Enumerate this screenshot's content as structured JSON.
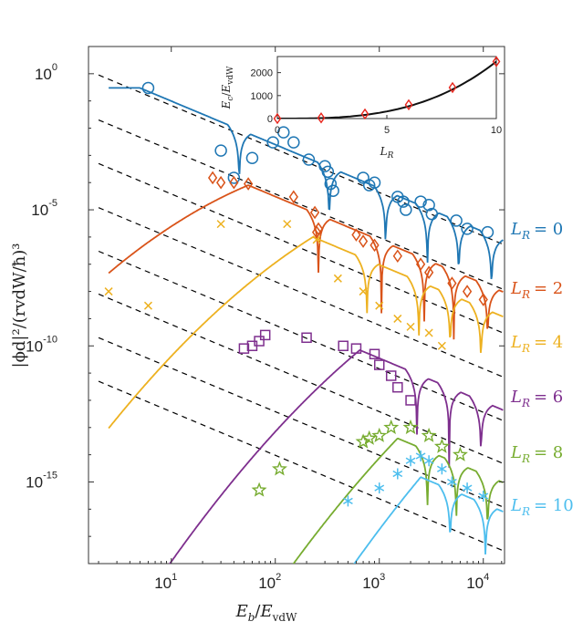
{
  "chart_data": {
    "type": "scatter",
    "xscale": "log",
    "yscale": "log",
    "xlim": [
      1.6,
      16000
    ],
    "ylim": [
      1e-18,
      10.0
    ],
    "xticks": [
      {
        "base": "10",
        "exp": "1",
        "value": 10
      },
      {
        "base": "10",
        "exp": "2",
        "value": 100
      },
      {
        "base": "10",
        "exp": "3",
        "value": 1000
      },
      {
        "base": "10",
        "exp": "4",
        "value": 10000
      }
    ],
    "yticks": [
      {
        "base": "10",
        "exp": "0",
        "value": 1
      },
      {
        "base": "10",
        "exp": "-5",
        "value": 1e-05
      },
      {
        "base": "10",
        "exp": "-10",
        "value": 1e-10
      },
      {
        "base": "10",
        "exp": "-15",
        "value": 1e-15
      }
    ],
    "xlabel": {
      "main": "E",
      "sub": "b",
      "sep": "/",
      "den": "E",
      "den_sub": "vdW"
    },
    "ylabel": {
      "text": "|ϕd|²/(rvdW/ħ)³"
    },
    "series": [
      {
        "name": "L_R = 0",
        "label_main": "L",
        "label_sub": "R",
        "label_eq": "= 0",
        "color": "#1f77b4",
        "marker": "circle",
        "points": [
          [
            6,
            0.3
          ],
          [
            30,
            0.0015
          ],
          [
            40,
            0.00015
          ],
          [
            60,
            0.0008
          ],
          [
            95,
            0.003
          ],
          [
            120,
            0.007
          ],
          [
            150,
            0.003
          ],
          [
            210,
            0.0007
          ],
          [
            300,
            0.0004
          ],
          [
            320,
            0.00025
          ],
          [
            340,
            9e-05
          ],
          [
            360,
            5e-05
          ],
          [
            700,
            0.00015
          ],
          [
            800,
            8e-05
          ],
          [
            900,
            0.0001
          ],
          [
            1500,
            3e-05
          ],
          [
            1700,
            2e-05
          ],
          [
            1800,
            1e-05
          ],
          [
            2500,
            2e-05
          ],
          [
            3000,
            1.5e-05
          ],
          [
            3200,
            7e-06
          ],
          [
            5500,
            4e-06
          ],
          [
            7000,
            2e-06
          ],
          [
            11000,
            1.5e-06
          ]
        ]
      },
      {
        "name": "L_R = 2",
        "label_main": "L",
        "label_sub": "R",
        "label_eq": "= 2",
        "color": "#d95319",
        "marker": "diamond",
        "points": [
          [
            25,
            0.00015
          ],
          [
            30,
            0.0001
          ],
          [
            40,
            0.0001
          ],
          [
            55,
            9e-05
          ],
          [
            150,
            3e-05
          ],
          [
            240,
            8e-06
          ],
          [
            250,
            1.5e-06
          ],
          [
            260,
            2e-06
          ],
          [
            600,
            1.2e-06
          ],
          [
            700,
            7e-07
          ],
          [
            900,
            5e-07
          ],
          [
            1500,
            2e-07
          ],
          [
            2500,
            1e-07
          ],
          [
            3000,
            5e-08
          ],
          [
            5000,
            2e-08
          ],
          [
            7000,
            1e-08
          ],
          [
            10000,
            5e-09
          ]
        ]
      },
      {
        "name": "L_R = 4",
        "label_main": "L",
        "label_sub": "R",
        "label_eq": "= 4",
        "color": "#edb120",
        "marker": "cross",
        "points": [
          [
            2.5,
            1e-08
          ],
          [
            6,
            3e-09
          ],
          [
            30,
            3e-06
          ],
          [
            130,
            3e-06
          ],
          [
            250,
            8e-07
          ],
          [
            400,
            3e-08
          ],
          [
            700,
            1e-08
          ],
          [
            1000,
            3e-09
          ],
          [
            1500,
            1e-09
          ],
          [
            2000,
            5e-10
          ],
          [
            3000,
            3e-10
          ],
          [
            4000,
            1e-10
          ]
        ]
      },
      {
        "name": "L_R = 6",
        "label_main": "L",
        "label_sub": "R",
        "label_eq": "= 6",
        "color": "#7e2f8e",
        "marker": "square",
        "points": [
          [
            50,
            8e-11
          ],
          [
            60,
            1e-10
          ],
          [
            70,
            1.5e-10
          ],
          [
            80,
            2.5e-10
          ],
          [
            200,
            2e-10
          ],
          [
            450,
            1e-10
          ],
          [
            600,
            8e-11
          ],
          [
            900,
            5e-11
          ],
          [
            1000,
            2e-11
          ],
          [
            1300,
            8e-12
          ],
          [
            1500,
            3e-12
          ],
          [
            2000,
            1e-12
          ]
        ]
      },
      {
        "name": "L_R = 8",
        "label_main": "L",
        "label_sub": "R",
        "label_eq": "= 8",
        "color": "#77ac30",
        "marker": "star",
        "points": [
          [
            70,
            5e-16
          ],
          [
            110,
            3e-15
          ],
          [
            700,
            3e-14
          ],
          [
            800,
            4e-14
          ],
          [
            1000,
            5e-14
          ],
          [
            1300,
            1e-13
          ],
          [
            2000,
            1e-13
          ],
          [
            3000,
            5e-14
          ],
          [
            4000,
            2e-14
          ],
          [
            6000,
            1e-14
          ]
        ]
      },
      {
        "name": "L_R = 10",
        "label_main": "L",
        "label_sub": "R",
        "label_eq": "= 10",
        "color": "#4dbeee",
        "marker": "asterisk",
        "points": [
          [
            500,
            2e-16
          ],
          [
            1000,
            6e-16
          ],
          [
            1500,
            2e-15
          ],
          [
            2000,
            6e-15
          ],
          [
            2500,
            9e-15
          ],
          [
            3000,
            6e-15
          ],
          [
            4000,
            3e-15
          ],
          [
            5000,
            1e-15
          ],
          [
            7000,
            6e-16
          ],
          [
            10000,
            3e-16
          ]
        ]
      }
    ],
    "inset": {
      "type": "line",
      "xlim": [
        0,
        10
      ],
      "ylim": [
        0,
        2700
      ],
      "xticks": [
        "0",
        "5",
        "10"
      ],
      "yticks": [
        "0",
        "1000",
        "2000"
      ],
      "xlabel": {
        "main": "L",
        "sub": "R"
      },
      "ylabel": {
        "main": "E",
        "sub": "c",
        "sep": "/",
        "den": "E",
        "den_sub": "vdW"
      },
      "points": [
        [
          0,
          0
        ],
        [
          2,
          30
        ],
        [
          4,
          200
        ],
        [
          6,
          600
        ],
        [
          8,
          1350
        ],
        [
          10,
          2480
        ]
      ],
      "marker_color": "#e8251c",
      "curve_color": "#111111"
    }
  }
}
